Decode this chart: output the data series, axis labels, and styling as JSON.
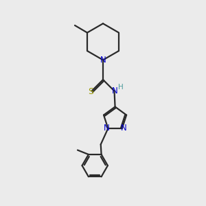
{
  "background_color": "#ebebeb",
  "bond_color": "#2a2a2a",
  "N_color": "#0000cc",
  "S_color": "#999900",
  "H_color": "#4a9a9a",
  "line_width": 1.6,
  "figsize": [
    3.0,
    3.0
  ],
  "dpi": 100,
  "xlim": [
    0,
    10
  ],
  "ylim": [
    0,
    14
  ]
}
